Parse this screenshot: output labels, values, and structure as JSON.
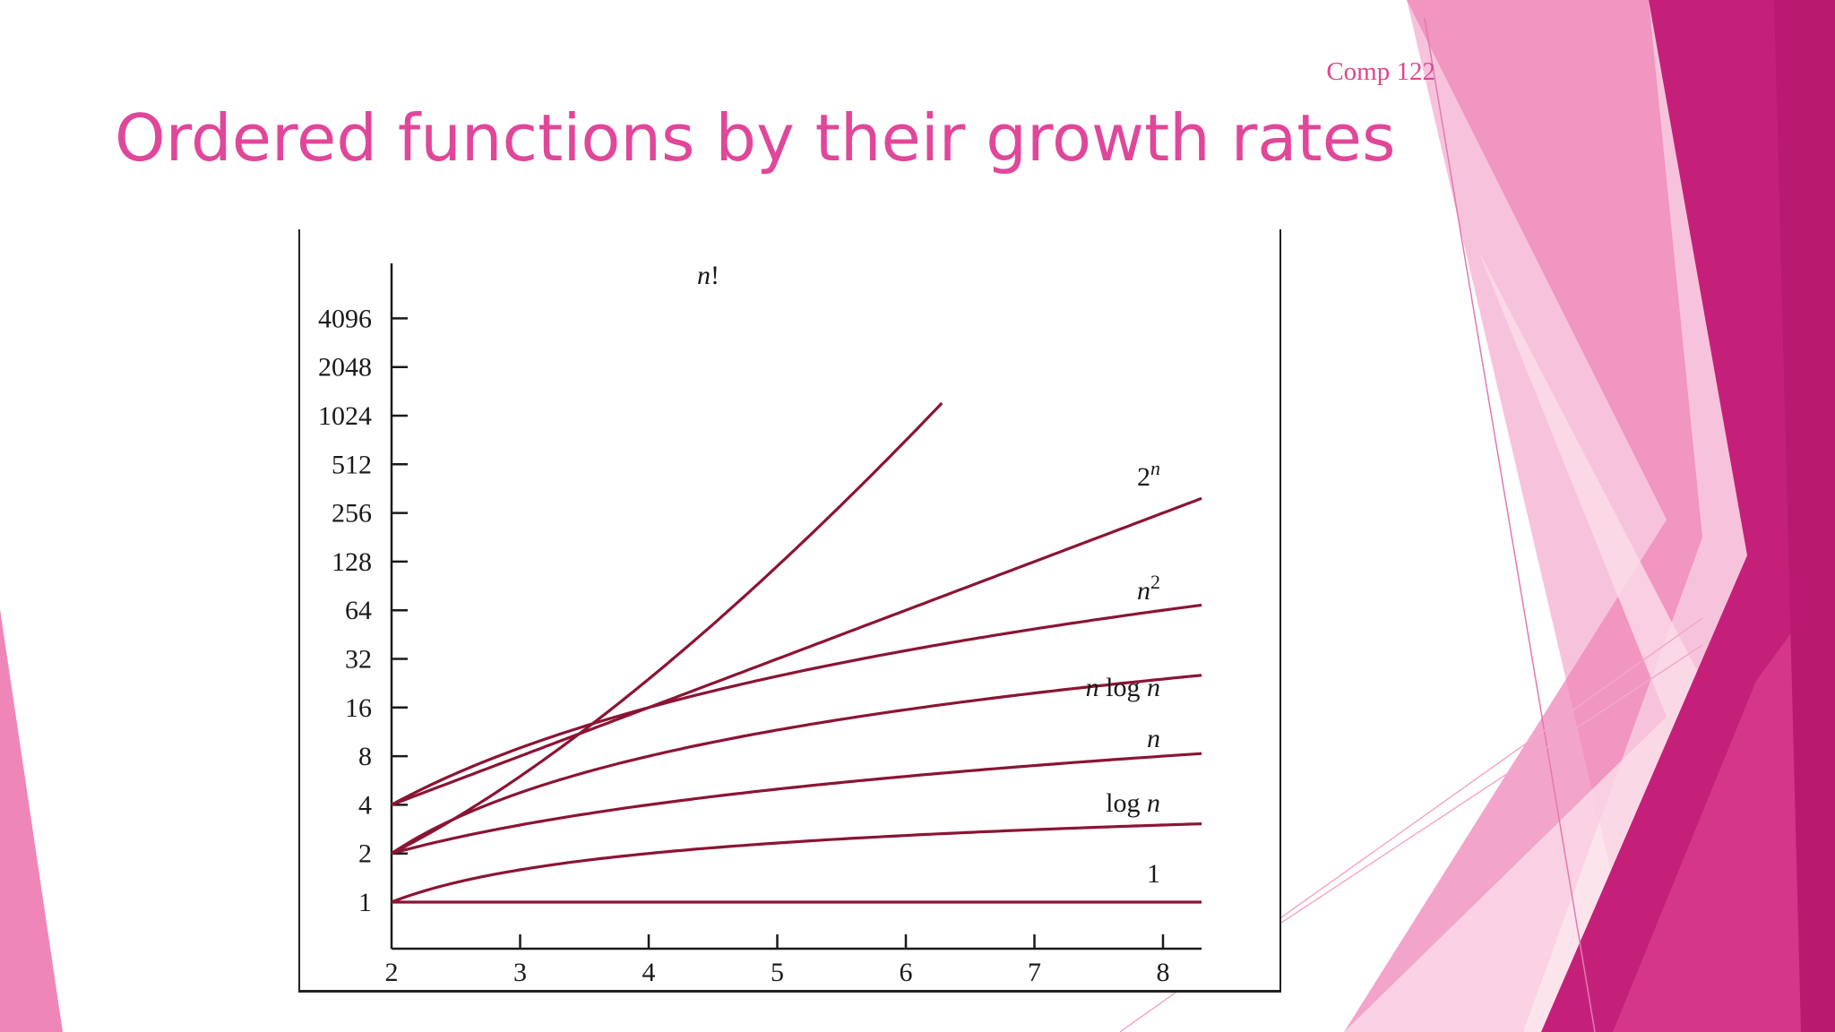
{
  "slide": {
    "course_label": "Comp 122",
    "title": "Ordered functions by their growth rates"
  },
  "colors": {
    "title": "#e0479a",
    "curve": "#8b1434",
    "axis": "#1a1a1a",
    "decor_light": "#f7c3dc",
    "decor_mid": "#ef86b8",
    "decor_dark": "#c4207a"
  },
  "chart_data": {
    "type": "line",
    "title": "",
    "xlabel": "",
    "ylabel": "",
    "x_ticks": [
      2,
      3,
      4,
      5,
      6,
      7,
      8
    ],
    "y_ticks": [
      1,
      2,
      4,
      8,
      16,
      32,
      64,
      128,
      256,
      512,
      1024,
      2048,
      4096
    ],
    "y_scale": "log2",
    "xlim": [
      2,
      8.3
    ],
    "ylim": [
      0.5,
      8192
    ],
    "grid": false,
    "legend": "inline labels at right end of each curve",
    "series": [
      {
        "name": "1",
        "function": "1",
        "x": [
          2,
          3,
          4,
          5,
          6,
          7,
          8.3
        ],
        "y": [
          1,
          1,
          1,
          1,
          1,
          1,
          1
        ]
      },
      {
        "name": "log n",
        "function": "log2(n)",
        "x": [
          2,
          3,
          4,
          5,
          6,
          7,
          8.3
        ],
        "y": [
          1,
          1.58,
          2,
          2.32,
          2.58,
          2.81,
          3.05
        ]
      },
      {
        "name": "n",
        "function": "n",
        "x": [
          2,
          3,
          4,
          5,
          6,
          7,
          8.3
        ],
        "y": [
          2,
          3,
          4,
          5,
          6,
          7,
          8.3
        ]
      },
      {
        "name": "n log n",
        "function": "n*log2(n)",
        "x": [
          2,
          3,
          4,
          5,
          6,
          7,
          8.3
        ],
        "y": [
          2,
          4.75,
          8,
          11.6,
          15.5,
          19.65,
          25.3
        ]
      },
      {
        "name": "n2",
        "function": "n^2",
        "x": [
          2,
          3,
          4,
          5,
          6,
          7,
          8.3
        ],
        "y": [
          4,
          9,
          16,
          25,
          36,
          49,
          68.9
        ]
      },
      {
        "name": "2n",
        "function": "2^n",
        "x": [
          2,
          3,
          4,
          5,
          6,
          7,
          8.3
        ],
        "y": [
          4,
          8,
          16,
          32,
          64,
          128,
          315
        ]
      },
      {
        "name": "n!",
        "function": "n!",
        "x": [
          2,
          3,
          4,
          5,
          6,
          6.28
        ],
        "y": [
          2,
          6,
          24,
          120,
          720,
          1300
        ]
      }
    ]
  }
}
